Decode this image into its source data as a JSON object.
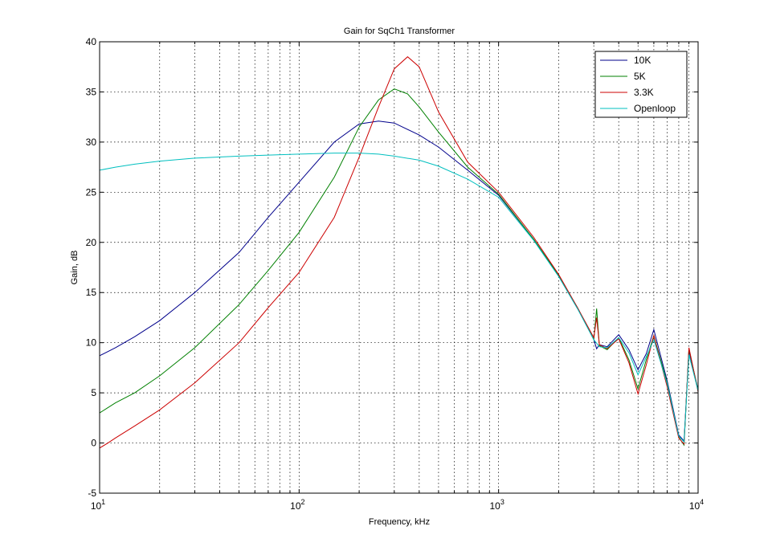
{
  "chart_data": {
    "type": "line",
    "title": "Gain for SqCh1 Transformer",
    "xlabel": "Frequency, kHz",
    "ylabel": "Gain, dB",
    "xscale": "log",
    "xlim": [
      10,
      10000
    ],
    "ylim": [
      -5,
      40
    ],
    "yticks": [
      -5,
      0,
      5,
      10,
      15,
      20,
      25,
      30,
      35,
      40
    ],
    "xtick_labels": [
      {
        "base": "10",
        "exp": "1"
      },
      {
        "base": "10",
        "exp": "2"
      },
      {
        "base": "10",
        "exp": "3"
      },
      {
        "base": "10",
        "exp": "4"
      }
    ],
    "grid": true,
    "legend_position": "top-right",
    "series": [
      {
        "name": "10K",
        "color": "#00008b",
        "x": [
          10,
          12,
          15,
          20,
          30,
          50,
          70,
          100,
          150,
          200,
          250,
          300,
          400,
          500,
          700,
          1000,
          1500,
          2000,
          2500,
          3000,
          3100,
          3200,
          3500,
          4000,
          4500,
          5000,
          5500,
          6000,
          7000,
          8000,
          8500,
          9000,
          10000
        ],
        "y": [
          8.7,
          9.5,
          10.6,
          12.2,
          15,
          19,
          22.5,
          26,
          30,
          31.8,
          32.1,
          31.9,
          30.7,
          29.5,
          27.2,
          24.7,
          20.3,
          16.7,
          13.4,
          10.3,
          9.4,
          9.8,
          9.6,
          10.8,
          9.3,
          7.3,
          8.9,
          11.3,
          6.2,
          0.8,
          0.2,
          9.2,
          5.3
        ]
      },
      {
        "name": "5K",
        "color": "#008000",
        "x": [
          10,
          12,
          15,
          20,
          30,
          50,
          70,
          100,
          150,
          200,
          250,
          300,
          350,
          400,
          500,
          700,
          1000,
          1500,
          2000,
          2500,
          3000,
          3100,
          3200,
          3500,
          4000,
          4500,
          5000,
          5500,
          6000,
          7000,
          8000,
          8500,
          9000,
          10000
        ],
        "y": [
          3,
          4,
          5,
          6.7,
          9.5,
          13.8,
          17.2,
          21,
          26.5,
          31.5,
          34.2,
          35.3,
          34.8,
          33.5,
          31,
          27.5,
          24.8,
          20.3,
          16.7,
          13.4,
          10.3,
          13.4,
          9.7,
          9.3,
          10.5,
          8.3,
          5.4,
          8.3,
          10.7,
          6,
          0.6,
          -0.2,
          9.4,
          5.2
        ]
      },
      {
        "name": "3.3K",
        "color": "#cc0000",
        "x": [
          10,
          11,
          12,
          15,
          20,
          30,
          50,
          70,
          100,
          150,
          200,
          250,
          300,
          350,
          400,
          500,
          700,
          1000,
          1500,
          2000,
          2500,
          3000,
          3100,
          3200,
          3500,
          4000,
          4500,
          5000,
          5500,
          6000,
          7000,
          8000,
          8500,
          9000,
          10000
        ],
        "y": [
          -0.5,
          0,
          0.5,
          1.7,
          3.3,
          6,
          10,
          13.5,
          17,
          22.5,
          28.5,
          33.5,
          37.3,
          38.5,
          37.5,
          33,
          28,
          25,
          20.5,
          16.8,
          13.4,
          10.5,
          12.5,
          9.8,
          9.4,
          10.4,
          8,
          4.9,
          7.8,
          10.7,
          5.6,
          0.5,
          -0.1,
          9.5,
          5.1
        ]
      },
      {
        "name": "Openloop",
        "color": "#00bfbf",
        "x": [
          10,
          12,
          15,
          20,
          30,
          50,
          70,
          100,
          150,
          200,
          250,
          300,
          400,
          500,
          700,
          1000,
          1500,
          2000,
          2500,
          3000,
          3200,
          3500,
          4000,
          4500,
          5000,
          5500,
          6000,
          7000,
          8000,
          8500,
          9000,
          10000
        ],
        "y": [
          27.2,
          27.5,
          27.8,
          28.1,
          28.4,
          28.6,
          28.7,
          28.8,
          28.9,
          28.9,
          28.8,
          28.6,
          28.2,
          27.6,
          26.3,
          24.5,
          20.2,
          16.6,
          13.3,
          10.3,
          9.6,
          9.5,
          10.5,
          9,
          6.8,
          8.6,
          10.3,
          5.9,
          0.7,
          0.1,
          8.8,
          5.2
        ]
      }
    ]
  }
}
